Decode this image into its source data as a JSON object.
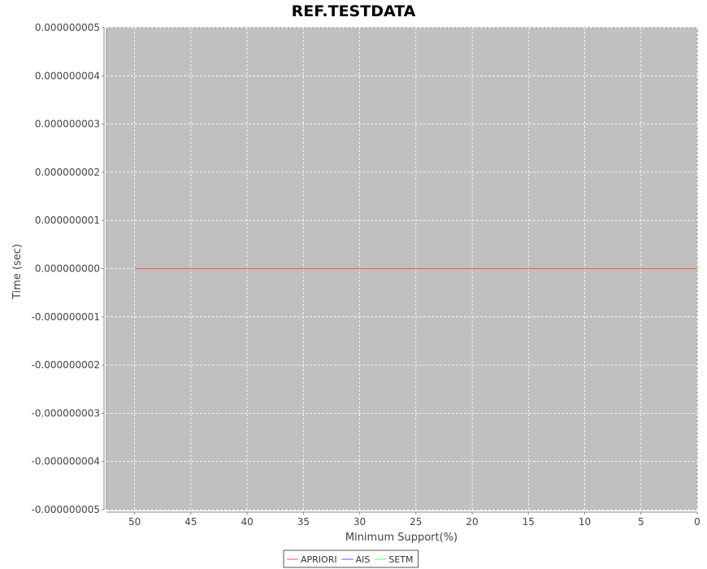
{
  "chart_data": {
    "type": "line",
    "title": "REF.TESTDATA",
    "xlabel": "Minimum Support(%)",
    "ylabel": "Time (sec)",
    "x_reversed": true,
    "xlim": [
      0,
      52.5
    ],
    "ylim": [
      -5e-09,
      5e-09
    ],
    "x_ticks": [
      50,
      45,
      40,
      35,
      30,
      25,
      20,
      15,
      10,
      5,
      0
    ],
    "x_tick_labels": [
      "50",
      "45",
      "40",
      "35",
      "30",
      "25",
      "20",
      "15",
      "10",
      "5",
      "0"
    ],
    "y_ticks": [
      5e-09,
      4e-09,
      3e-09,
      2e-09,
      1e-09,
      0,
      -1e-09,
      -2e-09,
      -3e-09,
      -4e-09,
      -5e-09
    ],
    "y_tick_labels": [
      "0.000000005",
      "0.000000004",
      "0.000000003",
      "0.000000002",
      "0.000000001",
      "0.000000000",
      "-0.000000001",
      "-0.000000002",
      "-0.000000003",
      "-0.000000004",
      "-0.000000005"
    ],
    "grid": true,
    "plot_background": "#c0c0c0",
    "legend_position": "bottom-center",
    "series": [
      {
        "name": "APRIORI",
        "color": "#ff5555",
        "x": [
          50,
          0
        ],
        "y": [
          0,
          0
        ]
      },
      {
        "name": "AIS",
        "color": "#5555ff",
        "x": [],
        "y": []
      },
      {
        "name": "SETM",
        "color": "#55ff55",
        "x": [],
        "y": []
      }
    ]
  }
}
